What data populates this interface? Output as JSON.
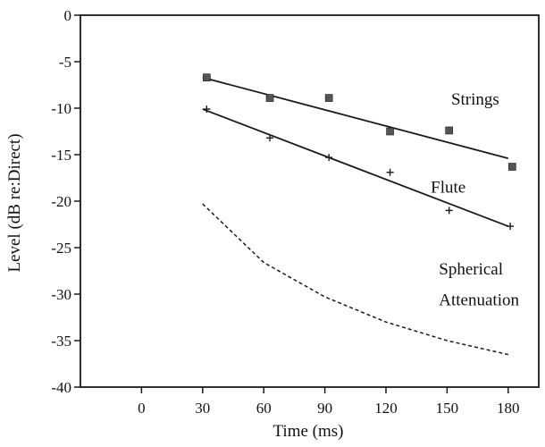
{
  "chart_data": {
    "type": "scatter",
    "title": "",
    "xlabel": "Time (ms)",
    "ylabel": "Level (dB re:Direct)",
    "xlim": [
      -30,
      195
    ],
    "ylim": [
      -40,
      0
    ],
    "xticks": [
      0,
      30,
      60,
      90,
      120,
      150,
      180
    ],
    "yticks": [
      0,
      -5,
      -10,
      -15,
      -20,
      -25,
      -30,
      -35,
      -40
    ],
    "grid": false,
    "legend": "none",
    "series": [
      {
        "name": "Strings",
        "marker": "square",
        "points": [
          [
            32,
            -6.7
          ],
          [
            63,
            -8.9
          ],
          [
            92,
            -8.9
          ],
          [
            122,
            -12.5
          ],
          [
            151,
            -12.4
          ],
          [
            182,
            -16.3
          ]
        ],
        "fit": [
          [
            30,
            -6.7
          ],
          [
            180,
            -15.4
          ]
        ]
      },
      {
        "name": "Flute",
        "marker": "plus",
        "points": [
          [
            32,
            -10.1
          ],
          [
            63,
            -13.2
          ],
          [
            92,
            -15.3
          ],
          [
            122,
            -16.9
          ],
          [
            151,
            -21.0
          ],
          [
            181,
            -22.7
          ]
        ],
        "fit": [
          [
            30,
            -10.1
          ],
          [
            180,
            -22.7
          ]
        ]
      },
      {
        "name": "Spherical Attenuation",
        "style": "dashed",
        "points": [
          [
            30,
            -20.3
          ],
          [
            60,
            -26.6
          ],
          [
            90,
            -30.3
          ],
          [
            120,
            -33.0
          ],
          [
            150,
            -35.0
          ],
          [
            180,
            -36.5
          ]
        ]
      }
    ],
    "annotations": [
      {
        "text": "Strings",
        "x": 152,
        "y": -9.6
      },
      {
        "text": "Flute",
        "x": 142,
        "y": -19.1
      },
      {
        "text": "Spherical",
        "x": 146,
        "y": -27.9
      },
      {
        "text": "Attenuation",
        "x": 146,
        "y": -31.2
      }
    ],
    "colors": {
      "ink": "#1a1a1a"
    }
  }
}
